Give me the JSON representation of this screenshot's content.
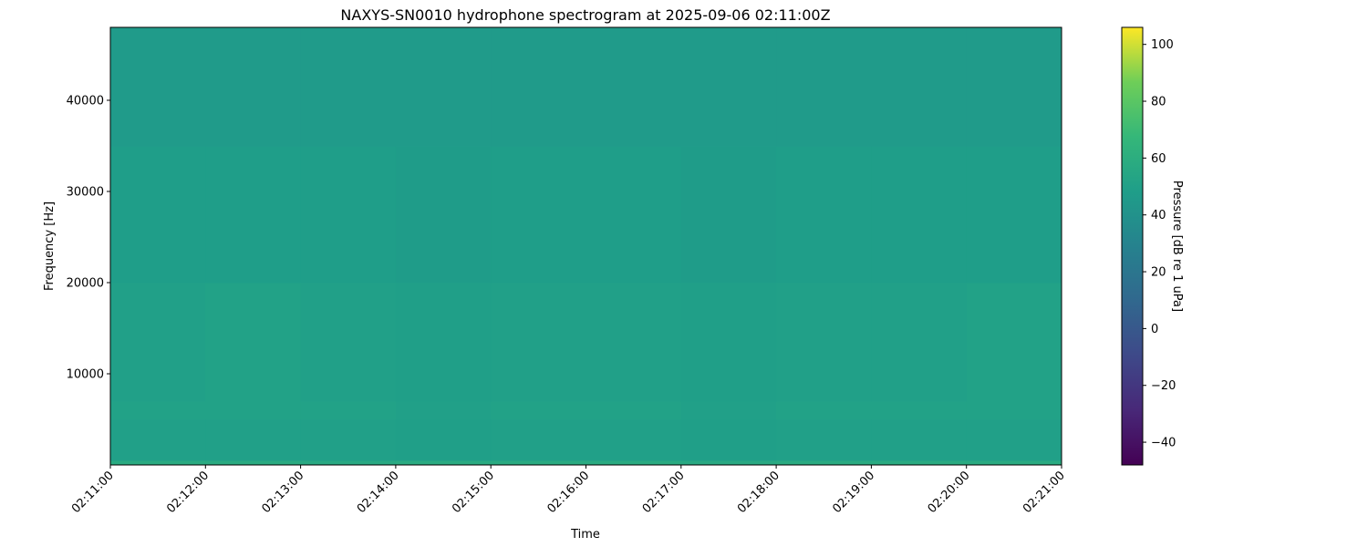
{
  "chart_data": {
    "type": "heatmap",
    "title": "NAXYS-SN0010 hydrophone spectrogram at 2025-09-06 02:11:00Z",
    "xlabel": "Time",
    "ylabel": "Frequency [Hz]",
    "colorbar_label": "Pressure [dB re 1 uPa]",
    "colormap": "viridis",
    "clim": [
      -48,
      106
    ],
    "ylim": [
      0,
      48000
    ],
    "xlim": [
      "02:11:00",
      "02:21:00"
    ],
    "x_ticks": [
      "02:11:00",
      "02:12:00",
      "02:13:00",
      "02:14:00",
      "02:15:00",
      "02:16:00",
      "02:17:00",
      "02:18:00",
      "02:19:00",
      "02:20:00",
      "02:21:00"
    ],
    "y_ticks": [
      10000,
      20000,
      30000,
      40000
    ],
    "colorbar_ticks": [
      -40,
      -20,
      0,
      20,
      40,
      60,
      80,
      100
    ],
    "grid": false,
    "freq_band_edges_hz": [
      0,
      500,
      5000,
      7000,
      20000,
      35000,
      48000
    ],
    "time_bin_edges": [
      "02:11:00",
      "02:12:00",
      "02:13:00",
      "02:14:00",
      "02:15:00",
      "02:16:00",
      "02:17:00",
      "02:18:00",
      "02:19:00",
      "02:20:00",
      "02:21:00"
    ],
    "z_db": [
      [
        58,
        58,
        57,
        58,
        58,
        58,
        57,
        58,
        58,
        58
      ],
      [
        50,
        50,
        50,
        49,
        50,
        50,
        49,
        50,
        50,
        50
      ],
      [
        51,
        51,
        51,
        50,
        51,
        51,
        50,
        51,
        51,
        51
      ],
      [
        50,
        51,
        50,
        49,
        50,
        50,
        49,
        50,
        50,
        51
      ],
      [
        48,
        48,
        48,
        47,
        48,
        48,
        47,
        48,
        48,
        48
      ],
      [
        46,
        46,
        46,
        46,
        46,
        46,
        46,
        46,
        46,
        46
      ]
    ]
  }
}
